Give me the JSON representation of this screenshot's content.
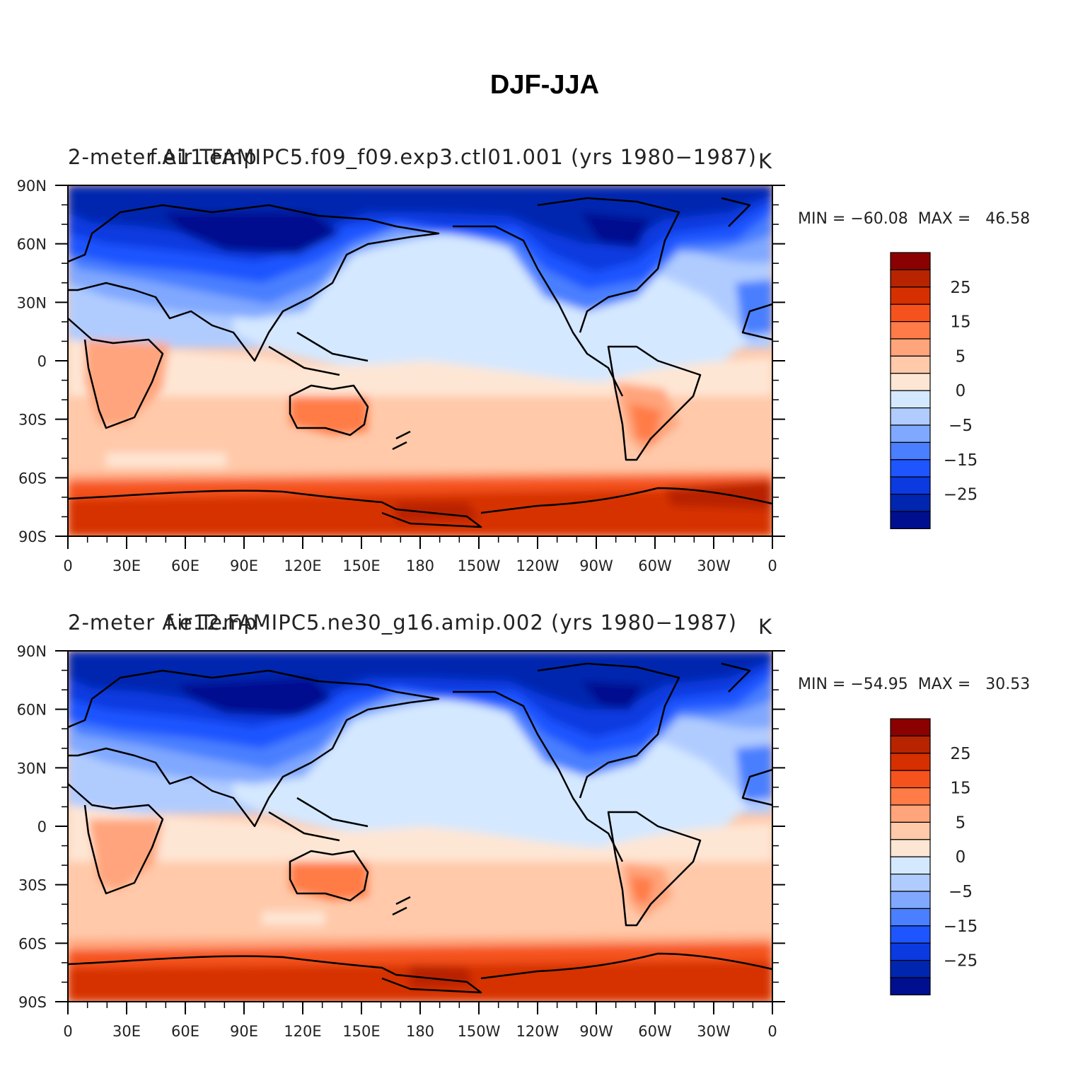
{
  "figure_title": "DJF-JJA",
  "colorbar": {
    "colors": [
      "#8b0000",
      "#b82300",
      "#d63000",
      "#f5521e",
      "#ff7b47",
      "#ffa47b",
      "#ffc9aa",
      "#fee6d4",
      "#d4e8ff",
      "#b0ccff",
      "#80a8ff",
      "#4a7fff",
      "#1e55ff",
      "#0a3ae0",
      "#0026b0",
      "#000f8f"
    ],
    "labels": [
      "25",
      "15",
      "5",
      "0",
      "−5",
      "−15",
      "−25"
    ]
  },
  "axes": {
    "lat_labels": [
      "90N",
      "60N",
      "30N",
      "0",
      "30S",
      "60S",
      "90S"
    ],
    "lon_labels": [
      "0",
      "30E",
      "60E",
      "90E",
      "120E",
      "150E",
      "180",
      "150W",
      "120W",
      "90W",
      "60W",
      "30W",
      "0"
    ]
  },
  "panels": [
    {
      "left_title": "2-meter Air Temp",
      "center_title": "f.e11.FAMIPC5.f09_f09.exp3.ctl01.001 (yrs 1980−1987)",
      "units": "K",
      "min_max": "MIN = −60.08  MAX =   46.58"
    },
    {
      "left_title": "2-meter Air Temp",
      "center_title": "f.e12.FAMIPC5.ne30_g16.amip.002 (yrs 1980−1987)",
      "units": "K",
      "min_max": "MIN = −54.95  MAX =   30.53"
    }
  ]
}
